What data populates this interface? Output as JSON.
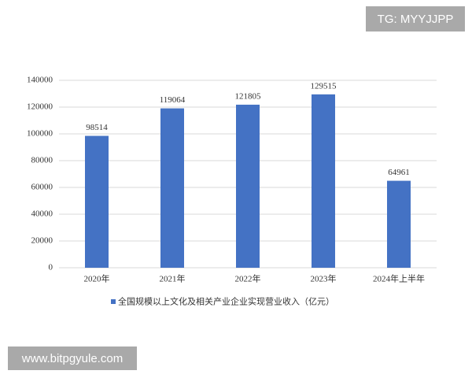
{
  "chart_data": {
    "type": "bar",
    "categories": [
      "2020年",
      "2021年",
      "2022年",
      "2023年",
      "2024年上半年"
    ],
    "series": [
      {
        "name": "全国规模以上文化及相关产业企业实现营业收入（亿元）",
        "color": "#4472c4",
        "values": [
          98514,
          119064,
          121805,
          129515,
          64961
        ]
      }
    ],
    "ylim": [
      0,
      140000
    ],
    "yticks": [
      0,
      20000,
      40000,
      60000,
      80000,
      100000,
      120000,
      140000
    ],
    "grid": true,
    "legend": "bottom"
  },
  "watermarks": [
    "TG: MYYJJPP",
    "www.bitpgyule.com"
  ]
}
